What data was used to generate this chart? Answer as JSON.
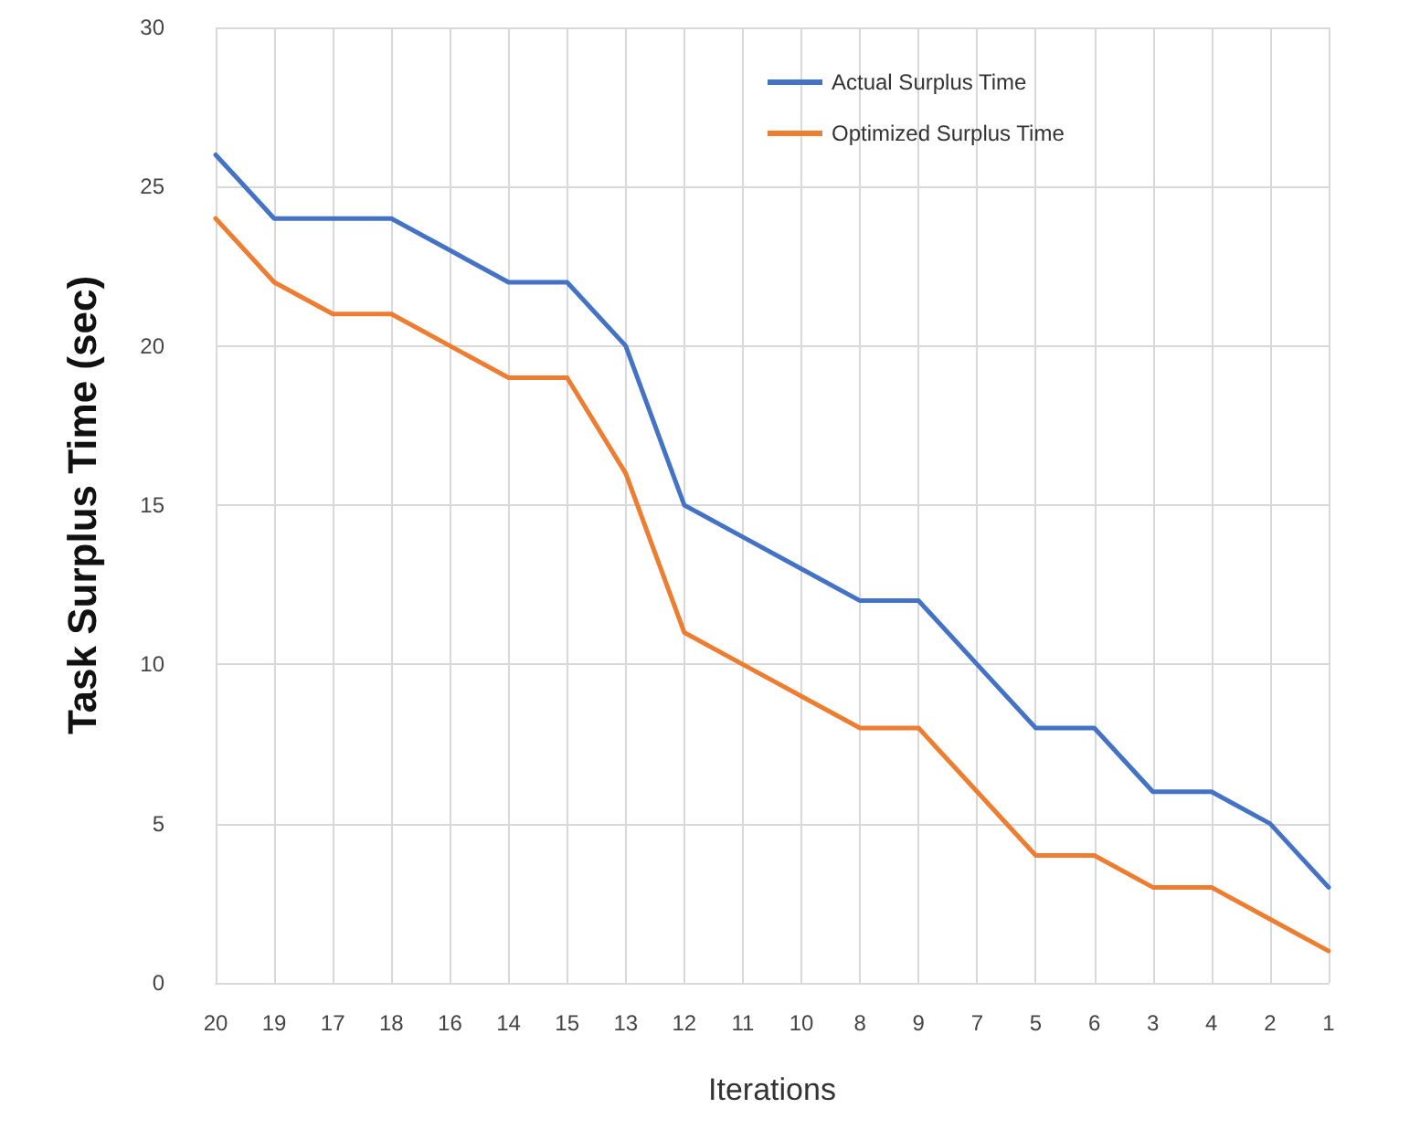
{
  "chart_data": {
    "type": "line",
    "xlabel": "Iterations",
    "ylabel": "Task Surplus Time (sec)",
    "categories": [
      "20",
      "19",
      "17",
      "18",
      "16",
      "14",
      "15",
      "13",
      "12",
      "11",
      "10",
      "8",
      "9",
      "7",
      "5",
      "6",
      "3",
      "4",
      "2",
      "1"
    ],
    "series": [
      {
        "name": "Actual Surplus Time",
        "color": "#4472c4",
        "values": [
          26,
          24,
          24,
          24,
          23,
          22,
          22,
          20,
          15,
          14,
          13,
          12,
          12,
          10,
          8,
          8,
          6,
          6,
          5,
          3
        ]
      },
      {
        "name": "Optimized Surplus Time",
        "color": "#ed7d31",
        "values": [
          24,
          22,
          21,
          21,
          20,
          19,
          19,
          16,
          11,
          10,
          9,
          8,
          8,
          6,
          4,
          4,
          3,
          3,
          2,
          1
        ]
      }
    ],
    "ylim": [
      0,
      30
    ],
    "yticks": [
      0,
      5,
      10,
      15,
      20,
      25,
      30
    ],
    "grid": true,
    "legend": "top right",
    "marker": "none",
    "line_style": "solid"
  }
}
